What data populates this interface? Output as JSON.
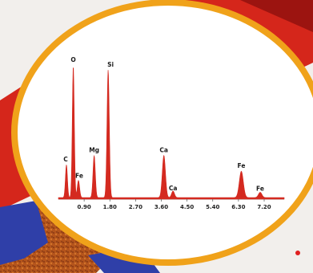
{
  "colors": {
    "page_background": "#f2efec",
    "red_band": "#d5261b",
    "dark_red": "#9c1410",
    "orange_ring": "#f0a21a",
    "disc_fill": "#ffffff",
    "spectrum": "#d42a20",
    "axis": "#555555",
    "blue_block": "#2f3fa8",
    "rust": "#b4541c",
    "accent_dot": "#e02020"
  },
  "chart_data": {
    "type": "line",
    "title": "",
    "xlabel": "",
    "ylabel": "",
    "xlim": [
      0,
      7.9
    ],
    "ylim": [
      0,
      1.0
    ],
    "x_ticks": [
      "0.90",
      "1.80",
      "2.70",
      "3.60",
      "4.50",
      "5.40",
      "6.30",
      "7.20"
    ],
    "x_tick_values": [
      0.9,
      1.8,
      2.7,
      3.6,
      4.5,
      5.4,
      6.3,
      7.2
    ],
    "grid": false,
    "legend": "none",
    "peaks": [
      {
        "label": "C",
        "x": 0.28,
        "height": 0.25,
        "width": 0.035
      },
      {
        "label": "O",
        "x": 0.52,
        "height": 1.0,
        "width": 0.035
      },
      {
        "label": "Fe",
        "x": 0.7,
        "height": 0.13,
        "width": 0.04
      },
      {
        "label": "Mg",
        "x": 1.25,
        "height": 0.32,
        "width": 0.04
      },
      {
        "label": "Si",
        "x": 1.74,
        "height": 0.97,
        "width": 0.04
      },
      {
        "label": "Ca",
        "x": 3.69,
        "height": 0.32,
        "width": 0.055
      },
      {
        "label": "Ca",
        "x": 4.01,
        "height": 0.05,
        "width": 0.05
      },
      {
        "label": "Fe",
        "x": 6.4,
        "height": 0.2,
        "width": 0.07
      },
      {
        "label": "Fe",
        "x": 7.06,
        "height": 0.04,
        "width": 0.06
      }
    ]
  }
}
